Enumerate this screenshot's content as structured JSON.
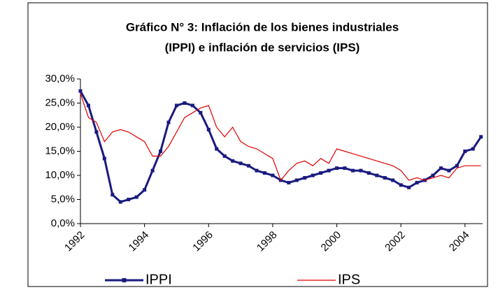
{
  "chart_data": {
    "type": "line",
    "title": "Gráfico N° 3: Inflación de los bienes industriales",
    "subtitle": "(IPPI) e inflación de servicios (IPS)",
    "x": [
      1992,
      1992.25,
      1992.5,
      1992.75,
      1993,
      1993.25,
      1993.5,
      1993.75,
      1994,
      1994.25,
      1994.5,
      1994.75,
      1995,
      1995.25,
      1995.5,
      1995.75,
      1996,
      1996.25,
      1996.5,
      1996.75,
      1997,
      1997.25,
      1997.5,
      1997.75,
      1998,
      1998.25,
      1998.5,
      1998.75,
      1999,
      1999.25,
      1999.5,
      1999.75,
      2000,
      2000.25,
      2000.5,
      2000.75,
      2001,
      2001.25,
      2001.5,
      2001.75,
      2002,
      2002.25,
      2002.5,
      2002.75,
      2003,
      2003.25,
      2003.5,
      2003.75,
      2004,
      2004.25,
      2004.5
    ],
    "series": [
      {
        "name": "IPPI",
        "color": "#1a1a80",
        "marker": "square",
        "values": [
          27.5,
          24.5,
          19,
          13.5,
          6,
          4.5,
          5,
          5.5,
          7,
          11,
          15,
          21,
          24.5,
          25,
          24.5,
          23,
          19.5,
          15.5,
          14,
          13,
          12.5,
          12,
          11,
          10.5,
          10,
          9,
          8.5,
          9,
          9.5,
          10,
          10.5,
          11,
          11.5,
          11.5,
          11,
          11,
          10.5,
          10,
          9.5,
          9,
          8,
          7.5,
          8.5,
          9,
          10,
          11.5,
          11,
          12,
          15,
          15.5,
          18
        ]
      },
      {
        "name": "IPS",
        "color": "#e00000",
        "values": [
          27,
          22,
          21,
          17,
          19,
          19.5,
          19,
          18,
          17,
          14,
          14,
          16,
          19,
          22,
          23,
          24,
          24.5,
          20,
          18,
          20,
          17,
          16,
          15.5,
          14.5,
          13.5,
          9,
          11,
          12.5,
          13,
          12,
          13.5,
          12.5,
          15.5,
          15,
          14.5,
          14,
          13.5,
          13,
          12.5,
          12,
          11,
          9,
          9.5,
          9,
          9.5,
          10,
          9.5,
          11.5,
          12,
          12,
          12
        ]
      }
    ],
    "xlim": [
      1992,
      2004.55
    ],
    "xticks": [
      1992,
      1994,
      1996,
      1998,
      2000,
      2002,
      2004
    ],
    "ylim": [
      0,
      30
    ],
    "yticks": [
      {
        "value": 0,
        "label": "0,0%"
      },
      {
        "value": 5,
        "label": "5,0%"
      },
      {
        "value": 10,
        "label": "10,0%"
      },
      {
        "value": 15,
        "label": "15,0%"
      },
      {
        "value": 20,
        "label": "20,0%"
      },
      {
        "value": 25,
        "label": "25,0%"
      },
      {
        "value": 30,
        "label": "30,0%"
      }
    ],
    "legend": "bottom"
  }
}
